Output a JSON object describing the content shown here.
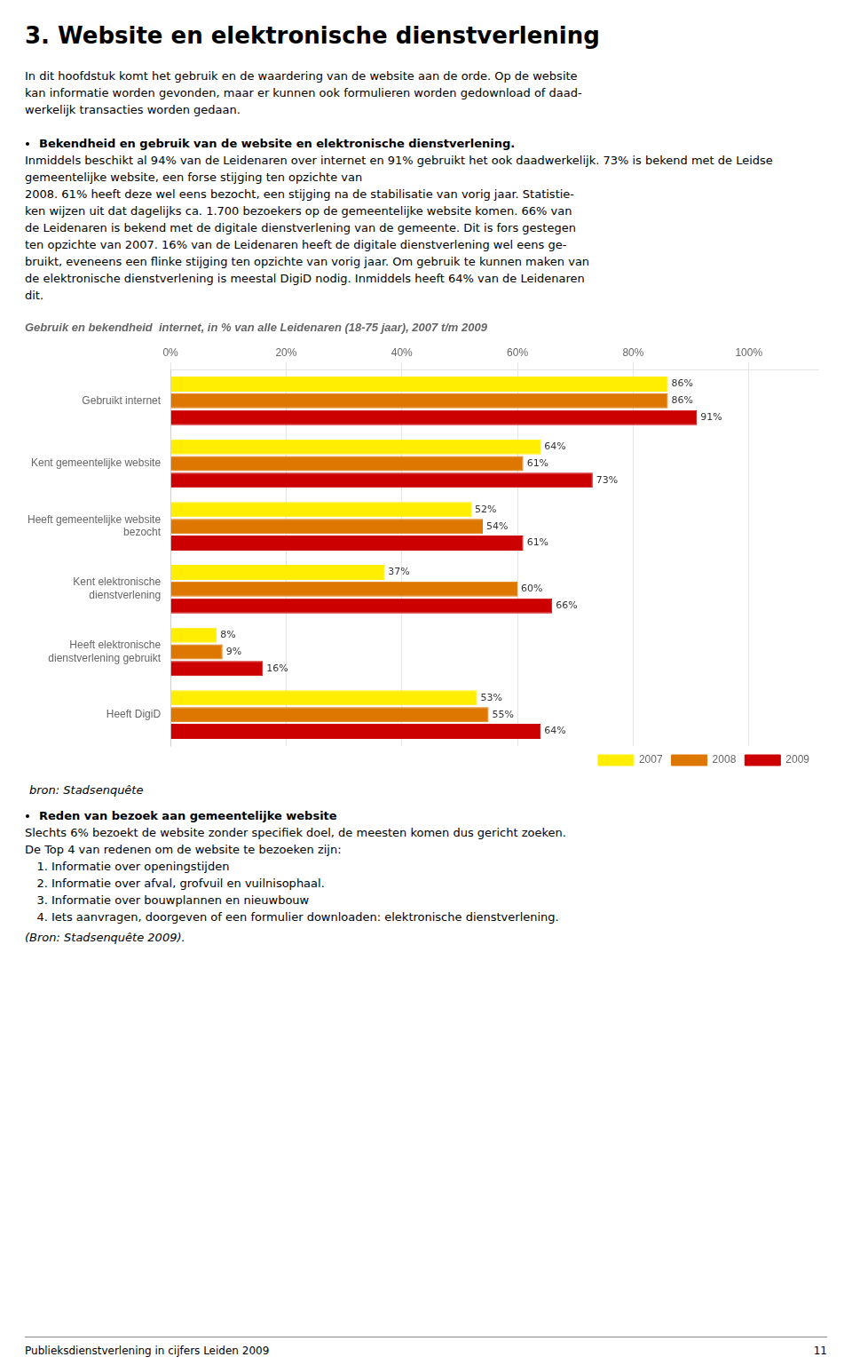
{
  "page_title": "3.  Website en elektronische dienstverlening",
  "paragraph1_lines": [
    "In dit hoofdstuk komt het gebruik en de waardering van de website aan de orde. Op de website",
    "kan informatie worden gevonden, maar er kunnen ook formulieren worden gedownload of daad-",
    "werkelijk transacties worden gedaan."
  ],
  "bullet1_bold": "Bekendheid en gebruik van de website en elektronische dienstverlening.",
  "bullet1_text_lines": [
    "Inmiddels beschikt al 94% van de Leidenaren over internet en 91% gebruikt het ook daadwerkelijk. 73% is bekend met de Leidse gemeentelijke website, een forse stijging ten opzichte van",
    "2008. 61% heeft deze wel eens bezocht, een stijging na de stabilisatie van vorig jaar. Statistie-",
    "ken wijzen uit dat dagelijks ca. 1.700 bezoekers op de gemeentelijke website komen. 66% van",
    "de Leidenaren is bekend met de digitale dienstverlening van de gemeente. Dit is fors gestegen",
    "ten opzichte van 2007. 16% van de Leidenaren heeft de digitale dienstverlening wel eens ge-",
    "bruikt, eveneens een flinke stijging ten opzichte van vorig jaar. Om gebruik te kunnen maken van",
    "de elektronische dienstverlening is meestal DigiD nodig. Inmiddels heeft 64% van de Leidenaren",
    "dit."
  ],
  "bron_text": "bron: Stadsenquête",
  "bullet2_bold": "Reden van bezoek aan gemeentelijke website",
  "bullet2_text1": "Slechts 6% bezoekt de website zonder specifiek doel, de meesten komen dus gericht zoeken.",
  "bullet2_text2": "De Top 4 van redenen om de website te bezoeken zijn:",
  "list_items": [
    "Informatie over openingstijden",
    "Informatie over afval, grofvuil en vuilnisophaal.",
    "Informatie over bouwplannen en nieuwbouw",
    "Iets aanvragen, doorgeven of een formulier downloaden: elektronische dienstverlening."
  ],
  "bron2_text": "(Bron: Stadsenquête 2009).",
  "footer_text": "Publieksdienstverlening in cijfers Leiden 2009",
  "footer_page": "11",
  "chart_data": {
    "type": "bar",
    "orientation": "horizontal",
    "title": "Gebruik en bekendheid  internet, in % van alle Leidenaren (18-75 jaar), 2007 t/m 2009",
    "categories": [
      "Gebruikt internet",
      "Kent gemeentelijke website",
      "Heeft gemeentelijke website\nbezocht",
      "Kent elektronische\ndienstverlening",
      "Heeft elektronische\ndienstverlening gebruikt",
      "Heeft DigiD"
    ],
    "series": [
      {
        "name": "2007",
        "color": "#FFEE00",
        "values": [
          86,
          64,
          52,
          37,
          8,
          53
        ],
        "value_labels": [
          "86%",
          "64%",
          "52%",
          "37%",
          "8%",
          "53%"
        ]
      },
      {
        "name": "2008",
        "color": "#DD7700",
        "values": [
          86,
          61,
          54,
          60,
          9,
          55
        ],
        "value_labels": [
          "86%",
          "61%",
          "54%",
          "60%",
          "9%",
          "55%"
        ]
      },
      {
        "name": "2009",
        "color": "#CC0000",
        "values": [
          91,
          73,
          61,
          66,
          16,
          64
        ],
        "value_labels": [
          "91%",
          "73%",
          "61%",
          "66%",
          "16%",
          "64%"
        ]
      }
    ],
    "xlim": [
      0,
      112
    ],
    "xticks": [
      {
        "value": 0,
        "label": "0%"
      },
      {
        "value": 20,
        "label": "20%"
      },
      {
        "value": 40,
        "label": "40%"
      },
      {
        "value": 60,
        "label": "60%"
      },
      {
        "value": 80,
        "label": "80%"
      },
      {
        "value": 100,
        "label": "100%"
      }
    ],
    "grid": true,
    "legend": "bottom",
    "data_labels": true
  }
}
